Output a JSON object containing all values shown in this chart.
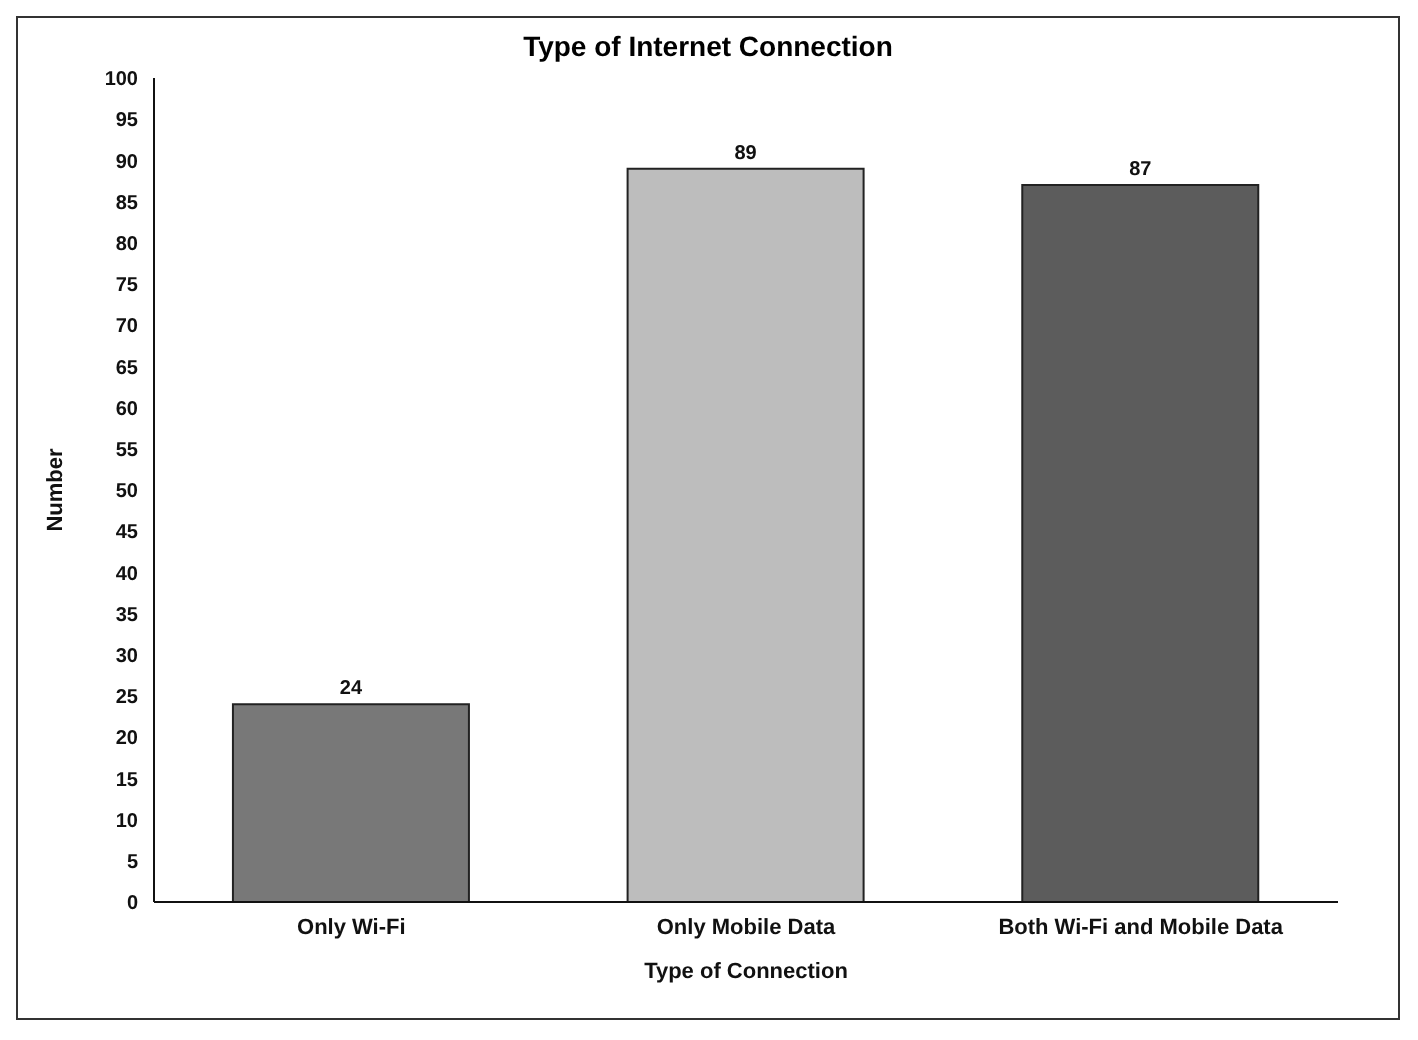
{
  "chart_data": {
    "type": "bar",
    "title": "Type of Internet Connection",
    "xlabel": "Type of Connection",
    "ylabel": "Number",
    "categories": [
      "Only Wi-Fi",
      "Only Mobile Data",
      "Both Wi-Fi and Mobile Data"
    ],
    "values": [
      24,
      89,
      87
    ],
    "colors": [
      "#787878",
      "#bdbdbd",
      "#5c5c5c"
    ],
    "ylim": [
      0,
      100
    ],
    "yticks": [
      0,
      5,
      10,
      15,
      20,
      25,
      30,
      35,
      40,
      45,
      50,
      55,
      60,
      65,
      70,
      75,
      80,
      85,
      90,
      95,
      100
    ],
    "data_labels": true,
    "grid": false,
    "legend": false
  }
}
